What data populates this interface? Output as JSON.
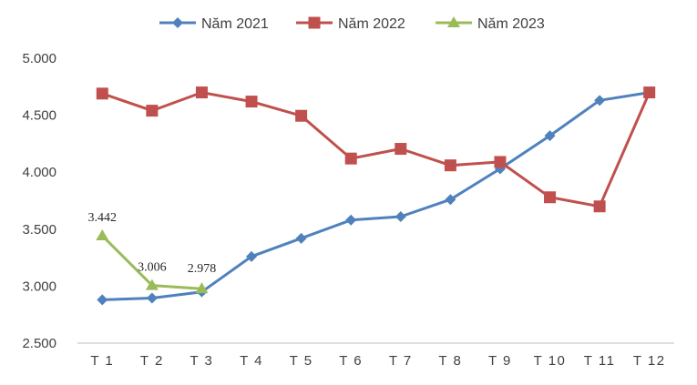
{
  "chart_data": {
    "type": "line",
    "title": "",
    "xlabel": "",
    "ylabel": "",
    "categories": [
      "T 1",
      "T 2",
      "T 3",
      "T 4",
      "T 5",
      "T 6",
      "T 7",
      "T 8",
      "T 9",
      "T 10",
      "T 11",
      "T 12"
    ],
    "y_ticks": [
      "2.500",
      "3.000",
      "3.500",
      "4.000",
      "4.500",
      "5.000"
    ],
    "ylim": [
      2500,
      5000
    ],
    "grid": false,
    "legend_position": "top",
    "series": [
      {
        "name": "Năm 2021",
        "color": "#4F81BD",
        "marker": "diamond",
        "values": [
          2880,
          2895,
          2950,
          3260,
          3420,
          3580,
          3610,
          3760,
          4030,
          4320,
          4630,
          4700
        ]
      },
      {
        "name": "Năm 2022",
        "color": "#C0504D",
        "marker": "square",
        "values": [
          4690,
          4540,
          4700,
          4620,
          4495,
          4120,
          4205,
          4060,
          4090,
          3780,
          3700,
          4700
        ]
      },
      {
        "name": "Năm 2023",
        "color": "#9BBB59",
        "marker": "triangle",
        "values": [
          3442,
          3006,
          2978,
          null,
          null,
          null,
          null,
          null,
          null,
          null,
          null,
          null
        ],
        "data_labels": [
          "3.442",
          "3.006",
          "2.978"
        ]
      }
    ]
  }
}
